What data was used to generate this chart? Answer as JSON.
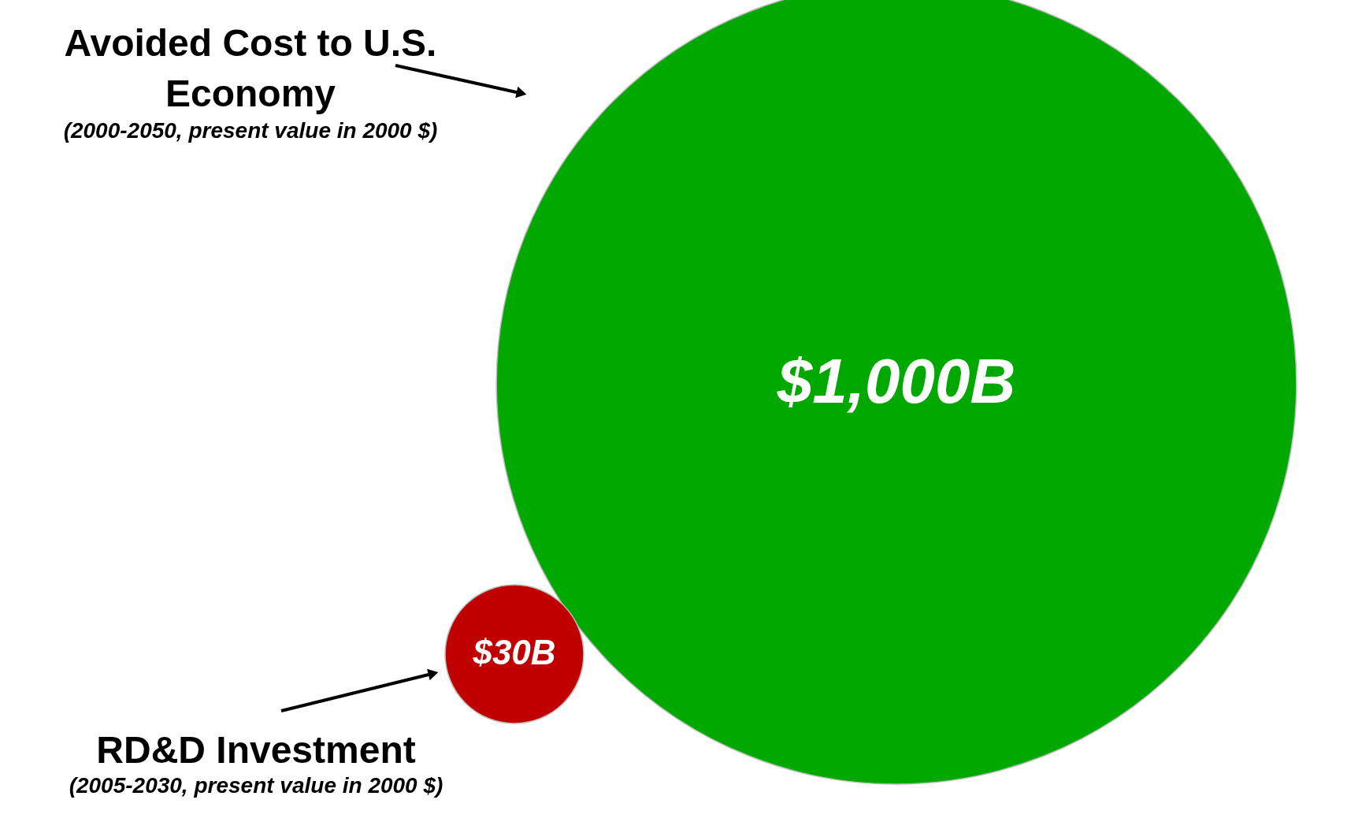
{
  "chart_data": {
    "type": "other",
    "categories": [
      "Avoided Cost to U.S. Economy",
      "RD&D Investment"
    ],
    "values": [
      1000,
      30
    ],
    "value_labels": [
      "$1,000B",
      "$30B"
    ],
    "colors": [
      "#00a800",
      "#c00000"
    ],
    "annotations": [
      "(2000-2050, present value in 2000 $)",
      "(2005-2030, present value in 2000 $)"
    ]
  }
}
